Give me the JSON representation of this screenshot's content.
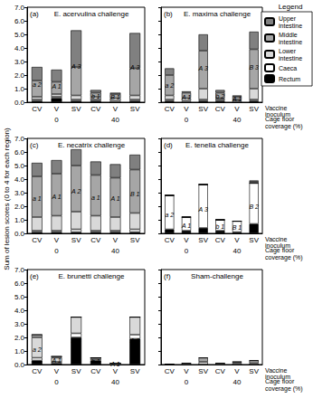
{
  "chart_data": [
    {
      "type": "bar",
      "stacked": true,
      "label": "(a)",
      "title": "E. acervulina challenge",
      "ylabel": "Sum of lesion scores (0 to 4 for each region)",
      "categories": [
        "CV",
        "V",
        "SV",
        "CV",
        "V",
        "SV"
      ],
      "groups": [
        "0",
        "40"
      ],
      "ylim": [
        0,
        7
      ],
      "yticks": [
        {
          "value": 0,
          "label": "0.0"
        },
        {
          "value": 1,
          "label": "1.0"
        },
        {
          "value": 2,
          "label": "2.0"
        },
        {
          "value": 3,
          "label": "3.0"
        },
        {
          "value": 4,
          "label": "4.0"
        },
        {
          "value": 5,
          "label": "5.0"
        },
        {
          "value": 6,
          "label": "6.0"
        },
        {
          "value": 7,
          "label": "7.0"
        }
      ],
      "annotations": [
        "a 2",
        "A 1",
        "A 3",
        "b 1",
        "B 1",
        "A 3"
      ],
      "series": [
        {
          "name": "Rectum",
          "color": "#000000",
          "values": [
            0.1,
            0.3,
            0.1,
            0.1,
            0.0,
            0.1
          ]
        },
        {
          "name": "Caeca",
          "color": "#ffffff",
          "values": [
            0.1,
            0.1,
            0.1,
            0.1,
            0.1,
            0.1
          ]
        },
        {
          "name": "Lower intestine",
          "color": "#d9d9d9",
          "values": [
            0.2,
            0.2,
            0.3,
            0.2,
            0.2,
            0.3
          ]
        },
        {
          "name": "Middle intestine",
          "color": "#a6a6a6",
          "values": [
            1.2,
            0.9,
            2.1,
            0.3,
            0.3,
            2.0
          ]
        },
        {
          "name": "Upper intestine",
          "color": "#808080",
          "values": [
            1.0,
            0.9,
            2.7,
            0.2,
            0.1,
            2.6
          ]
        }
      ]
    },
    {
      "type": "bar",
      "stacked": true,
      "label": "(b)",
      "title": "E. maxima challenge",
      "tick_labels": "x",
      "legend": "upper right",
      "xlabel": "Vaccine inoculum",
      "group_label": "Cage floor coverage (%)",
      "categories": [
        "CV",
        "V",
        "SV",
        "CV",
        "V",
        "SV"
      ],
      "groups": [
        "0",
        "40"
      ],
      "ylim": [
        0,
        7
      ],
      "yticks": [
        0,
        1,
        2,
        3,
        4,
        5,
        6,
        7
      ],
      "annotations": [
        "a 2",
        "A 1",
        "A 3",
        "b 2",
        "A 1",
        "B 3"
      ],
      "series": [
        {
          "name": "Rectum",
          "color": "#000000",
          "values": [
            0.1,
            0.0,
            0.1,
            0.1,
            0.0,
            0.1
          ]
        },
        {
          "name": "Caeca",
          "color": "#ffffff",
          "values": [
            0.1,
            0.1,
            0.1,
            0.1,
            0.1,
            0.1
          ]
        },
        {
          "name": "Lower intestine",
          "color": "#d9d9d9",
          "values": [
            0.3,
            0.2,
            0.8,
            0.1,
            0.1,
            0.8
          ]
        },
        {
          "name": "Middle intestine",
          "color": "#a6a6a6",
          "values": [
            1.5,
            0.4,
            2.8,
            0.4,
            0.2,
            2.9
          ]
        },
        {
          "name": "Upper intestine",
          "color": "#808080",
          "values": [
            0.5,
            0.1,
            1.2,
            0.2,
            0.1,
            1.3
          ]
        }
      ]
    },
    {
      "type": "bar",
      "stacked": true,
      "label": "(c)",
      "title": "E. necatrix challenge",
      "categories": [
        "CV",
        "V",
        "SV",
        "CV",
        "V",
        "SV"
      ],
      "groups": [
        "0",
        "40"
      ],
      "ylim": [
        0,
        7
      ],
      "yticks": [
        {
          "value": 0,
          "label": "0.0"
        },
        {
          "value": 1,
          "label": "1.0"
        },
        {
          "value": 2,
          "label": "2.0"
        },
        {
          "value": 3,
          "label": "3.0"
        },
        {
          "value": 4,
          "label": "4.0"
        },
        {
          "value": 5,
          "label": "5.0"
        },
        {
          "value": 6,
          "label": "6.0"
        },
        {
          "value": 7,
          "label": "7.0"
        }
      ],
      "annotations": [
        "a 1",
        "A 1",
        "A 2",
        "a 1",
        "A 1",
        "B 1"
      ],
      "series": [
        {
          "name": "Rectum",
          "color": "#000000",
          "values": [
            0.1,
            0.1,
            0.1,
            0.1,
            0.1,
            0.1
          ]
        },
        {
          "name": "Caeca",
          "color": "#ffffff",
          "values": [
            0.1,
            0.1,
            0.2,
            0.1,
            0.1,
            0.2
          ]
        },
        {
          "name": "Lower intestine",
          "color": "#d9d9d9",
          "values": [
            1.0,
            1.1,
            1.3,
            1.1,
            1.0,
            1.2
          ]
        },
        {
          "name": "Middle intestine",
          "color": "#a6a6a6",
          "values": [
            3.0,
            3.1,
            3.4,
            3.0,
            2.9,
            3.2
          ]
        },
        {
          "name": "Upper intestine",
          "color": "#808080",
          "values": [
            1.0,
            1.0,
            1.2,
            1.0,
            1.0,
            1.1
          ]
        }
      ]
    },
    {
      "type": "bar",
      "stacked": true,
      "label": "(d)",
      "title": "E. tenella challenge",
      "tick_labels": "x",
      "xlabel": "Vaccine inoculum",
      "group_label": "Cage floor coverage (%)",
      "categories": [
        "CV",
        "V",
        "SV",
        "CV",
        "V",
        "SV"
      ],
      "groups": [
        "0",
        "40"
      ],
      "ylim": [
        0,
        7
      ],
      "yticks": [
        0,
        1,
        2,
        3,
        4,
        5,
        6,
        7
      ],
      "annotations": [
        "a 2",
        "A 1",
        "A 3",
        "b 1",
        "B 1",
        "B 2"
      ],
      "series": [
        {
          "name": "Rectum",
          "color": "#000000",
          "values": [
            0.3,
            0.2,
            0.4,
            0.2,
            0.1,
            0.7
          ]
        },
        {
          "name": "Caeca",
          "color": "#ffffff",
          "values": [
            2.5,
            1.0,
            3.2,
            0.8,
            0.8,
            3.0
          ]
        },
        {
          "name": "Lower intestine",
          "color": "#d9d9d9",
          "values": [
            0,
            0,
            0,
            0,
            0,
            0
          ]
        },
        {
          "name": "Middle intestine",
          "color": "#a6a6a6",
          "values": [
            0,
            0,
            0,
            0,
            0,
            0.1
          ]
        },
        {
          "name": "Upper intestine",
          "color": "#808080",
          "values": [
            0,
            0,
            0,
            0,
            0,
            0.1
          ]
        }
      ]
    },
    {
      "type": "bar",
      "stacked": true,
      "label": "(e)",
      "title": "E. brunetti challenge",
      "categories": [
        "CV",
        "V",
        "SV",
        "CV",
        "V",
        "SV"
      ],
      "groups": [
        "0",
        "40"
      ],
      "ylim": [
        0,
        7
      ],
      "yticks": [
        {
          "value": 0,
          "label": "0.0"
        },
        {
          "value": 1,
          "label": "1.0"
        },
        {
          "value": 2,
          "label": "2.0"
        },
        {
          "value": 3,
          "label": "3.0"
        },
        {
          "value": 4,
          "label": "4.0"
        },
        {
          "value": 5,
          "label": "5.0"
        },
        {
          "value": 6,
          "label": "6.0"
        },
        {
          "value": 7,
          "label": "7.0"
        }
      ],
      "annotations": [
        "a 2",
        "A 1",
        "A 3",
        "b 1",
        "A 1",
        "A 3"
      ],
      "series": [
        {
          "name": "Rectum",
          "color": "#000000",
          "values": [
            0.3,
            0.1,
            2.0,
            0.3,
            0.0,
            1.9
          ]
        },
        {
          "name": "Caeca",
          "color": "#ffffff",
          "values": [
            0.2,
            0.1,
            0.3,
            0.1,
            0.1,
            0.3
          ]
        },
        {
          "name": "Lower intestine",
          "color": "#d9d9d9",
          "values": [
            1.5,
            0.3,
            1.2,
            0.1,
            0.0,
            1.3
          ]
        },
        {
          "name": "Middle intestine",
          "color": "#a6a6a6",
          "values": [
            0.2,
            0.1,
            0,
            0,
            0,
            0
          ]
        },
        {
          "name": "Upper intestine",
          "color": "#808080",
          "values": [
            0,
            0,
            0,
            0,
            0,
            0
          ]
        }
      ]
    },
    {
      "type": "bar",
      "stacked": true,
      "label": "(f)",
      "title": "Sham-challenge",
      "tick_labels": "x",
      "xlabel": "Vaccine inoculum",
      "group_label": "Cage floor coverage (%)",
      "categories": [
        "CV",
        "V",
        "SV",
        "CV",
        "V",
        "SV"
      ],
      "groups": [
        "0",
        "40"
      ],
      "ylim": [
        0,
        7
      ],
      "yticks": [
        0,
        1,
        2,
        3,
        4,
        5,
        6,
        7
      ],
      "series": [
        {
          "name": "Rectum",
          "color": "#000000",
          "values": [
            0,
            0,
            0,
            0,
            0,
            0
          ]
        },
        {
          "name": "Caeca",
          "color": "#ffffff",
          "values": [
            0,
            0,
            0,
            0,
            0,
            0
          ]
        },
        {
          "name": "Lower intestine",
          "color": "#d9d9d9",
          "values": [
            0,
            0.1,
            0.2,
            0.1,
            0.1,
            0.1
          ]
        },
        {
          "name": "Middle intestine",
          "color": "#a6a6a6",
          "values": [
            0,
            0,
            0.3,
            0,
            0.1,
            0.2
          ]
        },
        {
          "name": "Upper intestine",
          "color": "#808080",
          "values": [
            0,
            0,
            0,
            0,
            0,
            0
          ]
        }
      ]
    }
  ],
  "legend_title": "Legend"
}
